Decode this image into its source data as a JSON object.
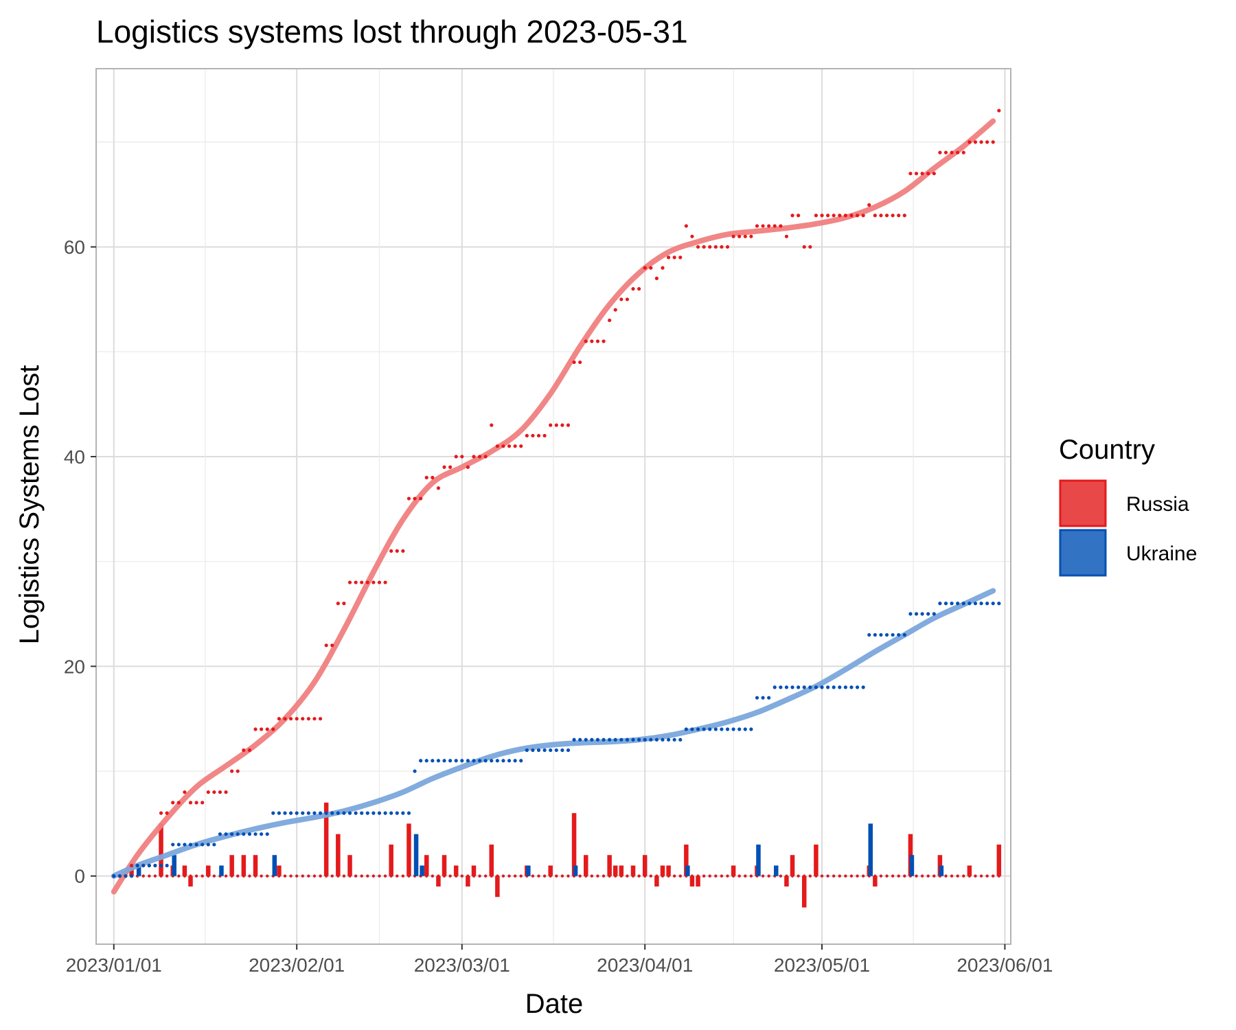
{
  "chart_data": {
    "type": "bar+scatter+line",
    "title": "Logistics systems lost through 2023-05-31",
    "xlabel": "Date",
    "ylabel": "Logistics Systems Lost",
    "x_range": [
      "2022-12-29",
      "2023-06-02"
    ],
    "ylim": [
      -6.5,
      77
    ],
    "y_ticks": [
      0,
      20,
      40,
      60
    ],
    "x_ticks": [
      {
        "date": "2023-01-01",
        "label": "2023/01/01"
      },
      {
        "date": "2023-02-01",
        "label": "2023/02/01"
      },
      {
        "date": "2023-03-01",
        "label": "2023/03/01"
      },
      {
        "date": "2023-04-01",
        "label": "2023/04/01"
      },
      {
        "date": "2023-05-01",
        "label": "2023/05/01"
      },
      {
        "date": "2023-06-01",
        "label": "2023/06/01"
      }
    ],
    "grid": true,
    "legend": {
      "title": "Country",
      "position": "right"
    },
    "series": [
      {
        "name": "Russia",
        "color": "#e41a1c",
        "smooth_color": "#f08080",
        "cumulative_steps": [
          [
            "2023-01-01",
            0
          ],
          [
            "2023-01-04",
            1
          ],
          [
            "2023-01-09",
            6
          ],
          [
            "2023-01-11",
            7
          ],
          [
            "2023-01-13",
            8
          ],
          [
            "2023-01-14",
            7
          ],
          [
            "2023-01-17",
            8
          ],
          [
            "2023-01-21",
            10
          ],
          [
            "2023-01-23",
            12
          ],
          [
            "2023-01-25",
            14
          ],
          [
            "2023-01-29",
            15
          ],
          [
            "2023-02-06",
            22
          ],
          [
            "2023-02-08",
            26
          ],
          [
            "2023-02-10",
            28
          ],
          [
            "2023-02-17",
            31
          ],
          [
            "2023-02-20",
            36
          ],
          [
            "2023-02-23",
            38
          ],
          [
            "2023-02-25",
            37
          ],
          [
            "2023-02-26",
            39
          ],
          [
            "2023-02-28",
            40
          ],
          [
            "2023-03-02",
            39
          ],
          [
            "2023-03-03",
            40
          ],
          [
            "2023-03-06",
            43
          ],
          [
            "2023-03-07",
            41
          ],
          [
            "2023-03-12",
            42
          ],
          [
            "2023-03-16",
            43
          ],
          [
            "2023-03-20",
            49
          ],
          [
            "2023-03-22",
            51
          ],
          [
            "2023-03-26",
            53
          ],
          [
            "2023-03-27",
            54
          ],
          [
            "2023-03-28",
            55
          ],
          [
            "2023-03-30",
            56
          ],
          [
            "2023-04-01",
            58
          ],
          [
            "2023-04-03",
            57
          ],
          [
            "2023-04-04",
            58
          ],
          [
            "2023-04-05",
            59
          ],
          [
            "2023-04-08",
            62
          ],
          [
            "2023-04-09",
            61
          ],
          [
            "2023-04-10",
            60
          ],
          [
            "2023-04-16",
            61
          ],
          [
            "2023-04-20",
            62
          ],
          [
            "2023-04-25",
            61
          ],
          [
            "2023-04-26",
            63
          ],
          [
            "2023-04-28",
            60
          ],
          [
            "2023-04-30",
            63
          ],
          [
            "2023-05-09",
            64
          ],
          [
            "2023-05-10",
            63
          ],
          [
            "2023-05-16",
            67
          ],
          [
            "2023-05-21",
            69
          ],
          [
            "2023-05-26",
            70
          ],
          [
            "2023-05-31",
            73
          ]
        ],
        "smooth_curve": [
          [
            "2023-01-01",
            -1.5
          ],
          [
            "2023-01-05",
            2
          ],
          [
            "2023-01-10",
            5.5
          ],
          [
            "2023-01-15",
            8.5
          ],
          [
            "2023-01-20",
            10.5
          ],
          [
            "2023-01-25",
            12.5
          ],
          [
            "2023-01-30",
            15
          ],
          [
            "2023-02-04",
            18.5
          ],
          [
            "2023-02-09",
            23.5
          ],
          [
            "2023-02-14",
            29
          ],
          [
            "2023-02-19",
            34
          ],
          [
            "2023-02-24",
            37.5
          ],
          [
            "2023-03-01",
            39
          ],
          [
            "2023-03-06",
            40.5
          ],
          [
            "2023-03-11",
            42.5
          ],
          [
            "2023-03-16",
            46
          ],
          [
            "2023-03-21",
            50.5
          ],
          [
            "2023-03-26",
            54.5
          ],
          [
            "2023-03-31",
            57.5
          ],
          [
            "2023-04-05",
            59.5
          ],
          [
            "2023-04-10",
            60.5
          ],
          [
            "2023-04-15",
            61.2
          ],
          [
            "2023-04-20",
            61.5
          ],
          [
            "2023-04-25",
            61.8
          ],
          [
            "2023-04-30",
            62.2
          ],
          [
            "2023-05-05",
            62.8
          ],
          [
            "2023-05-10",
            63.8
          ],
          [
            "2023-05-15",
            65.3
          ],
          [
            "2023-05-20",
            67.5
          ],
          [
            "2023-05-25",
            69.6
          ],
          [
            "2023-05-30",
            72
          ]
        ],
        "daily_bars": [
          [
            "2023-01-04",
            1
          ],
          [
            "2023-01-09",
            5
          ],
          [
            "2023-01-11",
            1
          ],
          [
            "2023-01-13",
            1
          ],
          [
            "2023-01-14",
            -1
          ],
          [
            "2023-01-17",
            1
          ],
          [
            "2023-01-21",
            2
          ],
          [
            "2023-01-23",
            2
          ],
          [
            "2023-01-25",
            2
          ],
          [
            "2023-01-29",
            1
          ],
          [
            "2023-02-06",
            7
          ],
          [
            "2023-02-08",
            4
          ],
          [
            "2023-02-10",
            2
          ],
          [
            "2023-02-17",
            3
          ],
          [
            "2023-02-20",
            5
          ],
          [
            "2023-02-23",
            2
          ],
          [
            "2023-02-25",
            -1
          ],
          [
            "2023-02-26",
            2
          ],
          [
            "2023-02-28",
            1
          ],
          [
            "2023-03-02",
            -1
          ],
          [
            "2023-03-03",
            1
          ],
          [
            "2023-03-06",
            3
          ],
          [
            "2023-03-07",
            -2
          ],
          [
            "2023-03-12",
            1
          ],
          [
            "2023-03-16",
            1
          ],
          [
            "2023-03-20",
            6
          ],
          [
            "2023-03-22",
            2
          ],
          [
            "2023-03-26",
            2
          ],
          [
            "2023-03-27",
            1
          ],
          [
            "2023-03-28",
            1
          ],
          [
            "2023-03-30",
            1
          ],
          [
            "2023-04-01",
            2
          ],
          [
            "2023-04-03",
            -1
          ],
          [
            "2023-04-04",
            1
          ],
          [
            "2023-04-05",
            1
          ],
          [
            "2023-04-08",
            3
          ],
          [
            "2023-04-09",
            -1
          ],
          [
            "2023-04-10",
            -1
          ],
          [
            "2023-04-16",
            1
          ],
          [
            "2023-04-20",
            1
          ],
          [
            "2023-04-25",
            -1
          ],
          [
            "2023-04-26",
            2
          ],
          [
            "2023-04-28",
            -3
          ],
          [
            "2023-04-30",
            3
          ],
          [
            "2023-05-09",
            1
          ],
          [
            "2023-05-10",
            -1
          ],
          [
            "2023-05-16",
            4
          ],
          [
            "2023-05-21",
            2
          ],
          [
            "2023-05-26",
            1
          ],
          [
            "2023-05-31",
            3
          ]
        ]
      },
      {
        "name": "Ukraine",
        "color": "#0050b4",
        "smooth_color": "#7ba7dc",
        "cumulative_steps": [
          [
            "2023-01-01",
            0
          ],
          [
            "2023-01-05",
            1
          ],
          [
            "2023-01-11",
            3
          ],
          [
            "2023-01-19",
            4
          ],
          [
            "2023-01-28",
            6
          ],
          [
            "2023-02-21",
            10
          ],
          [
            "2023-02-22",
            11
          ],
          [
            "2023-03-12",
            12
          ],
          [
            "2023-03-20",
            13
          ],
          [
            "2023-04-08",
            14
          ],
          [
            "2023-04-20",
            17
          ],
          [
            "2023-04-23",
            18
          ],
          [
            "2023-05-09",
            23
          ],
          [
            "2023-05-16",
            25
          ],
          [
            "2023-05-21",
            26
          ]
        ],
        "cumulative_end": "2023-05-31",
        "smooth_curve": [
          [
            "2023-01-01",
            0
          ],
          [
            "2023-01-05",
            1
          ],
          [
            "2023-01-10",
            2
          ],
          [
            "2023-01-15",
            3
          ],
          [
            "2023-01-20",
            3.8
          ],
          [
            "2023-01-25",
            4.5
          ],
          [
            "2023-01-30",
            5.1
          ],
          [
            "2023-02-04",
            5.6
          ],
          [
            "2023-02-09",
            6.2
          ],
          [
            "2023-02-14",
            7
          ],
          [
            "2023-02-19",
            8
          ],
          [
            "2023-02-24",
            9.3
          ],
          [
            "2023-03-01",
            10.4
          ],
          [
            "2023-03-06",
            11.4
          ],
          [
            "2023-03-11",
            12.1
          ],
          [
            "2023-03-16",
            12.5
          ],
          [
            "2023-03-21",
            12.7
          ],
          [
            "2023-03-26",
            12.8
          ],
          [
            "2023-03-31",
            13
          ],
          [
            "2023-04-05",
            13.4
          ],
          [
            "2023-04-10",
            14
          ],
          [
            "2023-04-15",
            14.7
          ],
          [
            "2023-04-20",
            15.6
          ],
          [
            "2023-04-25",
            16.8
          ],
          [
            "2023-04-30",
            18.1
          ],
          [
            "2023-05-05",
            19.7
          ],
          [
            "2023-05-10",
            21.4
          ],
          [
            "2023-05-15",
            23
          ],
          [
            "2023-05-20",
            24.6
          ],
          [
            "2023-05-25",
            25.9
          ],
          [
            "2023-05-30",
            27.2
          ]
        ],
        "daily_bars": [
          [
            "2023-01-05",
            1
          ],
          [
            "2023-01-11",
            2
          ],
          [
            "2023-01-19",
            1
          ],
          [
            "2023-01-28",
            2
          ],
          [
            "2023-02-21",
            4
          ],
          [
            "2023-02-22",
            1
          ],
          [
            "2023-03-12",
            1
          ],
          [
            "2023-03-20",
            1
          ],
          [
            "2023-04-08",
            1
          ],
          [
            "2023-04-20",
            3
          ],
          [
            "2023-04-23",
            1
          ],
          [
            "2023-05-09",
            5
          ],
          [
            "2023-05-16",
            2
          ],
          [
            "2023-05-21",
            1
          ]
        ]
      }
    ]
  }
}
